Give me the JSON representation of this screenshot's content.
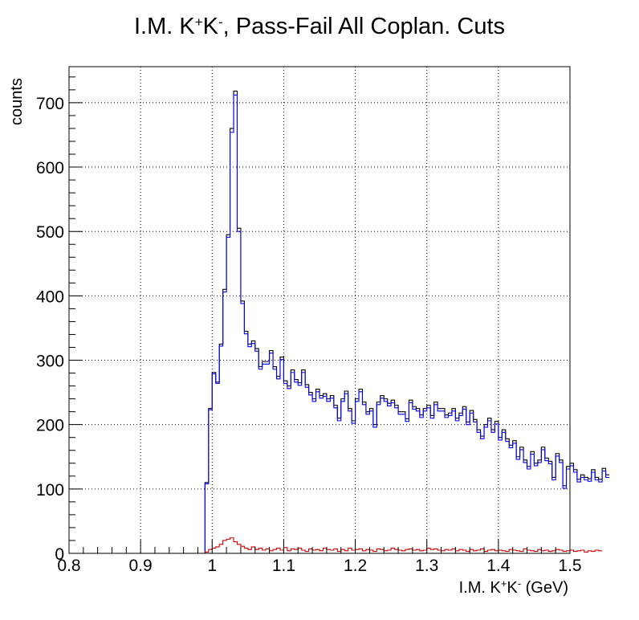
{
  "chart_data": {
    "type": "bar",
    "title": {
      "main": "I.M. K",
      "sup1": "+",
      "mid": "K",
      "sup2": "-",
      "rest": ", Pass-Fail All Coplan. Cuts"
    },
    "xlabel": {
      "main": "I.M. K",
      "sup1": "+",
      "mid": "K",
      "sup2": "-",
      "rest": " (GeV)"
    },
    "ylabel": "counts",
    "xlim": [
      0.8,
      1.5
    ],
    "ylim": [
      0,
      756
    ],
    "x_ticks": [
      "0.8",
      "0.9",
      "1",
      "1.1",
      "1.2",
      "1.3",
      "1.4",
      "1.5"
    ],
    "y_ticks": [
      "0",
      "100",
      "200",
      "300",
      "400",
      "500",
      "600",
      "700"
    ],
    "grid": true,
    "bin_width": 0.005,
    "x_start": 0.8,
    "colors": {
      "all": "#000000",
      "pass": "#0000ff",
      "fail": "#cc0000"
    },
    "series": [
      {
        "values": [
          0,
          0,
          0,
          0,
          0,
          0,
          0,
          0,
          0,
          0,
          0,
          0,
          0,
          0,
          0,
          0,
          0,
          0,
          0,
          0,
          0,
          0,
          0,
          0,
          0,
          0,
          0,
          0,
          0,
          0,
          0,
          0,
          0,
          0,
          0,
          0,
          0,
          0,
          110,
          225,
          281,
          266,
          325,
          410,
          495,
          660,
          718,
          505,
          392,
          345,
          325,
          330,
          318,
          290,
          298,
          298,
          315,
          290,
          275,
          305,
          268,
          260,
          285,
          270,
          265,
          285,
          262,
          250,
          240,
          255,
          245,
          248,
          240,
          245,
          230,
          210,
          240,
          252,
          225,
          206,
          240,
          255,
          235,
          220,
          225,
          200,
          235,
          245,
          240,
          233,
          238,
          230,
          220,
          220,
          209,
          238,
          228,
          225,
          215,
          225,
          230,
          214,
          235,
          225,
          225,
          215,
          218,
          225,
          210,
          218,
          228,
          204,
          222,
          208,
          192,
          182,
          200,
          210,
          192,
          205,
          180,
          192,
          178,
          168,
          175,
          150,
          165,
          145,
          135,
          158,
          140,
          145,
          165,
          148,
          143,
          118,
          155,
          145,
          105,
          135,
          140,
          130,
          115,
          122,
          118,
          116,
          130,
          118,
          115,
          132,
          122
        ]
      },
      {
        "values": [
          0,
          0,
          0,
          0,
          0,
          0,
          0,
          0,
          0,
          0,
          0,
          0,
          0,
          0,
          0,
          0,
          0,
          0,
          0,
          0,
          0,
          0,
          0,
          0,
          0,
          0,
          0,
          0,
          0,
          0,
          0,
          0,
          0,
          0,
          0,
          0,
          0,
          0,
          108,
          223,
          279,
          264,
          322,
          406,
          491,
          654,
          712,
          500,
          388,
          341,
          321,
          326,
          314,
          286,
          294,
          294,
          311,
          286,
          271,
          301,
          264,
          256,
          281,
          266,
          261,
          281,
          258,
          246,
          236,
          251,
          241,
          244,
          236,
          241,
          226,
          206,
          236,
          248,
          221,
          202,
          236,
          251,
          231,
          216,
          221,
          196,
          231,
          241,
          236,
          229,
          234,
          226,
          216,
          216,
          205,
          234,
          224,
          221,
          211,
          221,
          226,
          210,
          231,
          221,
          221,
          211,
          214,
          221,
          206,
          214,
          224,
          200,
          218,
          204,
          188,
          178,
          196,
          206,
          188,
          201,
          176,
          188,
          174,
          164,
          171,
          146,
          161,
          141,
          131,
          154,
          136,
          141,
          161,
          144,
          139,
          114,
          151,
          141,
          101,
          131,
          136,
          126,
          111,
          118,
          114,
          112,
          126,
          114,
          111,
          128,
          118
        ]
      },
      {
        "values": [
          0,
          0,
          0,
          0,
          0,
          0,
          0,
          0,
          0,
          0,
          0,
          0,
          0,
          0,
          0,
          0,
          0,
          0,
          0,
          0,
          0,
          0,
          0,
          0,
          0,
          0,
          0,
          0,
          0,
          0,
          0,
          0,
          0,
          0,
          0,
          0,
          0,
          0,
          2,
          6,
          8,
          10,
          14,
          20,
          22,
          24,
          18,
          14,
          11,
          8,
          6,
          10,
          6,
          8,
          5,
          7,
          4,
          6,
          8,
          5,
          9,
          4,
          7,
          6,
          8,
          5,
          3,
          7,
          5,
          6,
          4,
          8,
          6,
          5,
          7,
          3,
          6,
          4,
          8,
          5,
          6,
          7,
          4,
          6,
          5,
          3,
          7,
          6,
          4,
          5,
          8,
          6,
          5,
          4,
          6,
          7,
          5,
          6,
          4,
          5,
          8,
          6,
          7,
          5,
          4,
          6,
          5,
          7,
          4,
          6,
          5,
          3,
          6,
          4,
          5,
          7,
          3,
          5,
          6,
          4,
          5,
          4,
          3,
          6,
          5,
          4,
          3,
          7,
          5,
          4,
          3,
          6,
          4,
          5,
          3,
          4,
          6,
          5,
          3,
          4,
          5,
          3,
          4,
          5,
          2,
          4,
          3,
          5,
          4
        ]
      }
    ]
  }
}
